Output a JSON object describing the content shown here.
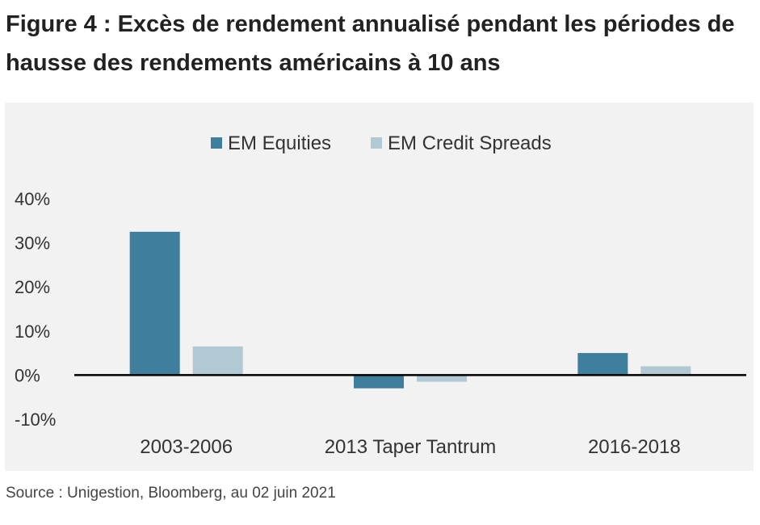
{
  "figure": {
    "title": "Figure 4 : Excès de rendement annualisé pendant les périodes de hausse des rendements américains à 10 ans",
    "source": "Source : Unigestion, Bloomberg, au 02 juin 2021"
  },
  "chart_data": {
    "type": "bar",
    "title": "",
    "xlabel": "",
    "ylabel": "",
    "categories": [
      "2003-2006",
      "2013 Taper Tantrum",
      "2016-2018"
    ],
    "series": [
      {
        "name": "EM Equities",
        "values": [
          32.5,
          -3.0,
          5.0
        ],
        "color": "#3f7f9e"
      },
      {
        "name": "EM Credit Spreads",
        "values": [
          6.5,
          -1.5,
          2.0
        ],
        "color": "#b0c9d3"
      }
    ],
    "ylim": [
      -10,
      40
    ],
    "yticks": [
      40,
      30,
      20,
      10,
      0,
      -10
    ],
    "ytick_labels": [
      "40%",
      "30%",
      "20%",
      "10%",
      "0%",
      "-10%"
    ],
    "legend": "top-center",
    "grid": false,
    "zero_line_color": "#000000",
    "background": "#f2f2f2"
  }
}
